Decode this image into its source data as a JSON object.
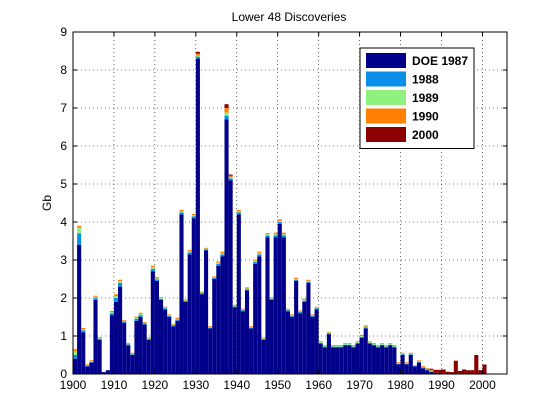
{
  "chart_data": {
    "type": "bar",
    "stacked": true,
    "title": "Lower 48 Discoveries",
    "xlabel": "",
    "ylabel": "Gb",
    "xlim": [
      1900,
      2006
    ],
    "ylim": [
      0,
      9
    ],
    "xticks": [
      1900,
      1910,
      1920,
      1930,
      1940,
      1950,
      1960,
      1970,
      1980,
      1990,
      2000
    ],
    "yticks": [
      0,
      1,
      2,
      3,
      4,
      5,
      6,
      7,
      8,
      9
    ],
    "grid": "dotted",
    "legend_position": "top-right",
    "x": [
      1900,
      1901,
      1902,
      1903,
      1904,
      1905,
      1906,
      1907,
      1908,
      1909,
      1910,
      1911,
      1912,
      1913,
      1914,
      1915,
      1916,
      1917,
      1918,
      1919,
      1920,
      1921,
      1922,
      1923,
      1924,
      1925,
      1926,
      1927,
      1928,
      1929,
      1930,
      1931,
      1932,
      1933,
      1934,
      1935,
      1936,
      1937,
      1938,
      1939,
      1940,
      1941,
      1942,
      1943,
      1944,
      1945,
      1946,
      1947,
      1948,
      1949,
      1950,
      1951,
      1952,
      1953,
      1954,
      1955,
      1956,
      1957,
      1958,
      1959,
      1960,
      1961,
      1962,
      1963,
      1964,
      1965,
      1966,
      1967,
      1968,
      1969,
      1970,
      1971,
      1972,
      1973,
      1974,
      1975,
      1976,
      1977,
      1978,
      1979,
      1980,
      1981,
      1982,
      1983,
      1984,
      1985,
      1986,
      1987,
      1988,
      1989,
      1990,
      1991,
      1992,
      1993,
      1994,
      1995,
      1996,
      1997,
      1998,
      1999,
      2000
    ],
    "series": [
      {
        "name": "DOE 1987",
        "color": "#00008b",
        "values": [
          0.4,
          3.4,
          1.1,
          0.2,
          0.3,
          1.95,
          0.9,
          0.05,
          0.1,
          1.55,
          1.9,
          2.3,
          1.35,
          0.75,
          0.5,
          1.4,
          1.5,
          1.3,
          0.9,
          2.7,
          2.45,
          1.95,
          1.7,
          1.5,
          1.25,
          1.4,
          4.2,
          1.9,
          3.15,
          4.1,
          8.3,
          2.1,
          3.25,
          1.2,
          2.5,
          2.85,
          3.1,
          6.7,
          5.1,
          1.75,
          4.2,
          1.65,
          2.2,
          1.2,
          2.9,
          3.1,
          0.9,
          3.6,
          1.95,
          3.6,
          3.95,
          3.6,
          1.65,
          1.5,
          2.45,
          1.6,
          1.9,
          2.4,
          1.5,
          1.7,
          0.8,
          0.7,
          1.05,
          0.7,
          0.7,
          0.7,
          0.75,
          0.75,
          0.7,
          0.8,
          0.95,
          1.2,
          0.8,
          0.75,
          0.7,
          0.75,
          0.7,
          0.75,
          0.7,
          0.25,
          0.5,
          0.25,
          0.5,
          0.2,
          0.3,
          0.15,
          0.1,
          0.05,
          0.03,
          0.03,
          0.02,
          0.01,
          0,
          0,
          0,
          0,
          0,
          0,
          0,
          0,
          0
        ]
      },
      {
        "name": "1988",
        "color": "#0a8ee8",
        "values": [
          0.1,
          0.3,
          0.05,
          0.02,
          0.02,
          0.05,
          0.03,
          0,
          0,
          0.05,
          0.1,
          0.1,
          0.03,
          0.03,
          0.02,
          0.05,
          0.05,
          0.03,
          0.02,
          0.07,
          0.04,
          0.03,
          0.03,
          0.03,
          0.03,
          0.03,
          0.05,
          0.02,
          0.05,
          0.05,
          0.05,
          0.03,
          0.03,
          0.02,
          0.03,
          0.05,
          0.05,
          0.1,
          0.05,
          0.03,
          0.05,
          0.03,
          0.03,
          0.02,
          0.05,
          0.05,
          0.02,
          0.05,
          0.03,
          0.05,
          0.05,
          0.05,
          0.03,
          0.03,
          0.03,
          0.03,
          0.03,
          0.03,
          0.03,
          0.03,
          0.02,
          0.02,
          0.02,
          0.02,
          0.02,
          0.02,
          0.02,
          0.02,
          0.02,
          0.02,
          0.03,
          0.03,
          0.02,
          0.02,
          0.02,
          0.02,
          0.02,
          0.02,
          0.02,
          0.02,
          0.02,
          0.02,
          0.02,
          0.01,
          0.02,
          0.02,
          0.02,
          0.02,
          0,
          0,
          0,
          0,
          0,
          0,
          0,
          0,
          0,
          0,
          0,
          0,
          0
        ]
      },
      {
        "name": "1989",
        "color": "#90f080",
        "values": [
          0.1,
          0.15,
          0.03,
          0.02,
          0.02,
          0.03,
          0.02,
          0,
          0,
          0.03,
          0.05,
          0.04,
          0.02,
          0.02,
          0.02,
          0.03,
          0.03,
          0.02,
          0.02,
          0.04,
          0.03,
          0.02,
          0.02,
          0.02,
          0.02,
          0.02,
          0.03,
          0.02,
          0.03,
          0.03,
          0.03,
          0.02,
          0.02,
          0.02,
          0.02,
          0.03,
          0.03,
          0.08,
          0.03,
          0.02,
          0.03,
          0.02,
          0.02,
          0.02,
          0.03,
          0.03,
          0.02,
          0.03,
          0.02,
          0.03,
          0.03,
          0.03,
          0.02,
          0.02,
          0.02,
          0.02,
          0.02,
          0.02,
          0.02,
          0.02,
          0.02,
          0.02,
          0.02,
          0.02,
          0.02,
          0.02,
          0.02,
          0.02,
          0.02,
          0.02,
          0.02,
          0.02,
          0.02,
          0.02,
          0.02,
          0.02,
          0.02,
          0.02,
          0.02,
          0.02,
          0.02,
          0.02,
          0.02,
          0.01,
          0.02,
          0.02,
          0.02,
          0.02,
          0,
          0,
          0,
          0,
          0,
          0,
          0,
          0,
          0,
          0,
          0,
          0,
          0
        ]
      },
      {
        "name": "1990",
        "color": "#ff7f00",
        "values": [
          0.05,
          0.05,
          0.03,
          0.02,
          0.02,
          0.03,
          0.02,
          0,
          0,
          0.03,
          0.05,
          0.04,
          0.02,
          0.02,
          0.02,
          0.03,
          0.03,
          0.02,
          0.02,
          0.04,
          0.03,
          0.02,
          0.02,
          0.02,
          0.02,
          0.03,
          0.04,
          0.02,
          0.03,
          0.03,
          0.05,
          0.02,
          0.02,
          0.02,
          0.02,
          0.03,
          0.04,
          0.12,
          0.04,
          0.02,
          0.04,
          0.02,
          0.03,
          0.02,
          0.03,
          0.04,
          0.02,
          0.03,
          0.02,
          0.04,
          0.04,
          0.04,
          0.02,
          0.02,
          0.03,
          0.02,
          0.03,
          0.03,
          0.02,
          0.02,
          0.02,
          0.02,
          0.02,
          0.02,
          0.02,
          0.02,
          0.02,
          0.02,
          0.02,
          0.02,
          0.03,
          0.03,
          0.02,
          0.02,
          0.02,
          0.02,
          0.02,
          0.02,
          0.02,
          0.02,
          0.02,
          0.02,
          0.02,
          0.01,
          0.02,
          0.02,
          0.02,
          0.02,
          0,
          0,
          0,
          0,
          0,
          0,
          0,
          0,
          0,
          0,
          0,
          0,
          0
        ]
      },
      {
        "name": "2000",
        "color": "#8b0000",
        "values": [
          0,
          0,
          0,
          0,
          0,
          0,
          0,
          0,
          0,
          0,
          0,
          0,
          0,
          0,
          0,
          0,
          0,
          0,
          0,
          0,
          0,
          0,
          0,
          0,
          0,
          0,
          0,
          0,
          0,
          0,
          0.05,
          0,
          0,
          0,
          0,
          0,
          0,
          0.1,
          0.03,
          0,
          0,
          0,
          0,
          0,
          0,
          0,
          0,
          0,
          0,
          0,
          0,
          0,
          0,
          0,
          0,
          0,
          0,
          0,
          0,
          0,
          0,
          0,
          0,
          0,
          0,
          0,
          0,
          0,
          0,
          0,
          0,
          0,
          0,
          0,
          0,
          0,
          0,
          0,
          0,
          0,
          0,
          0,
          0,
          0,
          0,
          0,
          0,
          0.03,
          0.08,
          0.08,
          0.1,
          0.05,
          0.05,
          0.35,
          0.08,
          0.12,
          0.1,
          0.1,
          0.5,
          0.1,
          0.25
        ]
      }
    ]
  }
}
